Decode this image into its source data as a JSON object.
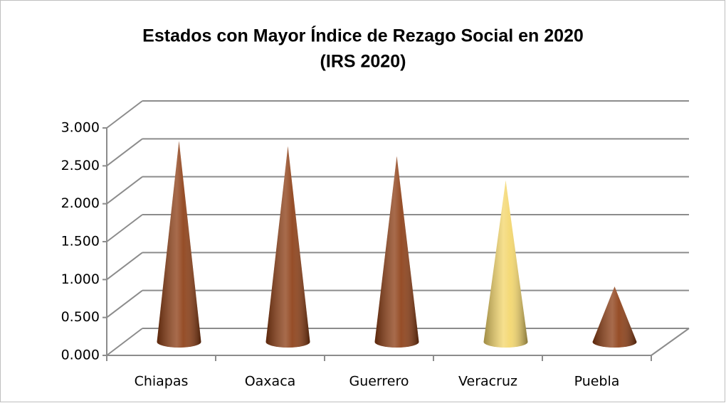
{
  "chart_data": {
    "type": "cone",
    "title": "Estados con Mayor Índice de Rezago Social en 2020",
    "subtitle": "(IRS 2020)",
    "categories": [
      "Chiapas",
      "Oaxaca",
      "Guerrero",
      "Veracruz",
      "Puebla"
    ],
    "values": [
      2.65,
      2.58,
      2.45,
      2.13,
      0.73
    ],
    "colors": [
      "#8a3a10",
      "#8a3a10",
      "#8a3a10",
      "#f3d568",
      "#8a3a10"
    ],
    "ylim": [
      0,
      3
    ],
    "yticks": [
      {
        "value": 0,
        "label": "0.000"
      },
      {
        "value": 0.5,
        "label": "0.500"
      },
      {
        "value": 1,
        "label": "1.000"
      },
      {
        "value": 1.5,
        "label": "1.500"
      },
      {
        "value": 2,
        "label": "2.000"
      },
      {
        "value": 2.5,
        "label": "2.500"
      },
      {
        "value": 3,
        "label": "3.000"
      }
    ],
    "grid": true
  }
}
